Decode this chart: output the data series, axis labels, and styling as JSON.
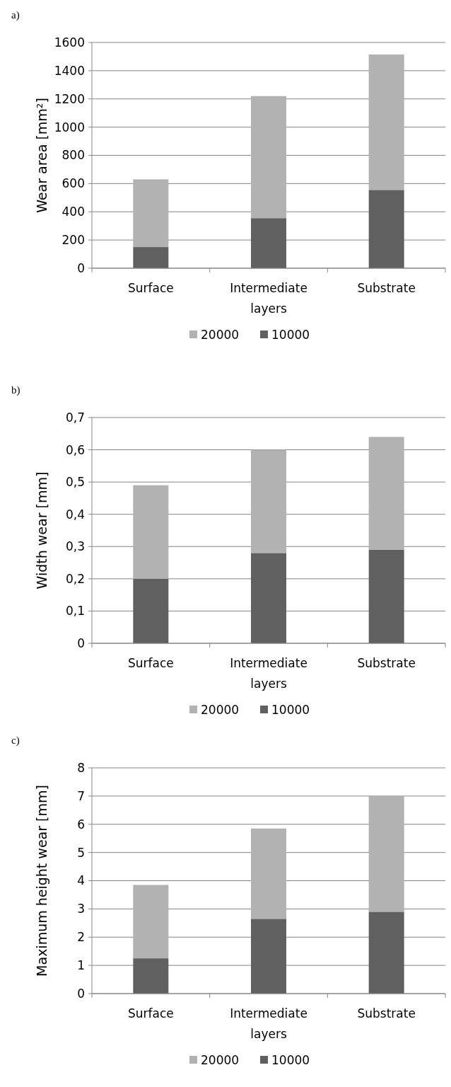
{
  "chart_data": [
    {
      "type": "bar",
      "title": "a)",
      "ylabel": "Wear area [mm²]",
      "categories": [
        "Surface",
        "Intermediate layers",
        "Substrate"
      ],
      "stacked": true,
      "series": [
        {
          "name": "10000",
          "color": "#606060",
          "values": [
            150,
            355,
            555
          ]
        },
        {
          "name": "20000",
          "color": "#b2b2b2",
          "values": [
            480,
            865,
            960
          ]
        }
      ],
      "ylim": [
        0,
        1600
      ],
      "yticks": [
        0,
        200,
        400,
        600,
        800,
        1000,
        1200,
        1400,
        1600
      ],
      "grid": "y",
      "legend": "bottom"
    },
    {
      "type": "bar",
      "title": "b)",
      "ylabel": "Width wear [mm]",
      "categories": [
        "Surface",
        "Intermediate layers",
        "Substrate"
      ],
      "stacked": true,
      "series": [
        {
          "name": "10000",
          "color": "#606060",
          "values": [
            0.2,
            0.28,
            0.29
          ]
        },
        {
          "name": "20000",
          "color": "#b2b2b2",
          "values": [
            0.29,
            0.32,
            0.35
          ]
        }
      ],
      "ylim": [
        0,
        0.7
      ],
      "yticks": [
        0,
        {
          "value": 0.1,
          "label": "0,1"
        },
        {
          "value": 0.2,
          "label": "0,2"
        },
        {
          "value": 0.3,
          "label": "0,3"
        },
        {
          "value": 0.4,
          "label": "0,4"
        },
        {
          "value": 0.5,
          "label": "0,5"
        },
        {
          "value": 0.6,
          "label": "0,6"
        },
        {
          "value": 0.7,
          "label": "0,7"
        }
      ],
      "grid": "y",
      "legend": "bottom"
    },
    {
      "type": "bar",
      "title": "c)",
      "ylabel": "Maximum height wear [mm]",
      "categories": [
        "Surface",
        "Intermediate layers",
        "Substrate"
      ],
      "stacked": true,
      "series": [
        {
          "name": "10000",
          "color": "#606060",
          "values": [
            1.25,
            2.65,
            2.9
          ]
        },
        {
          "name": "20000",
          "color": "#b2b2b2",
          "values": [
            2.6,
            3.2,
            4.1
          ]
        }
      ],
      "ylim": [
        0,
        8
      ],
      "yticks": [
        0,
        1,
        2,
        3,
        4,
        5,
        6,
        7,
        8
      ],
      "grid": "y",
      "legend": "bottom"
    }
  ]
}
